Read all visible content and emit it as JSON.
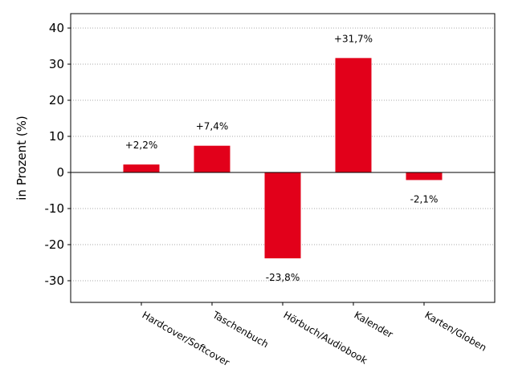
{
  "chart_data": {
    "type": "bar",
    "categories": [
      "Hardcover/Softcover",
      "Taschenbuch",
      "Hörbuch/Audiobook",
      "Kalender",
      "Karten/Globen"
    ],
    "values": [
      2.2,
      7.4,
      -23.8,
      31.7,
      -2.1
    ],
    "data_labels": [
      "+2,2%",
      "+7,4%",
      "-23,8%",
      "+31,7%",
      "-2,1%"
    ],
    "ylabel": "in Prozent (%)",
    "xlabel": "",
    "ylim": [
      -36,
      44
    ],
    "yticks": [
      -30,
      -20,
      -10,
      0,
      10,
      20,
      30,
      40
    ],
    "ytick_labels": [
      "-30",
      "-20",
      "-10",
      "0",
      "10",
      "20",
      "30",
      "40"
    ],
    "grid": "horizontal dotted",
    "bar_color": "#e2001a",
    "category_label_rotation": "diagonal"
  }
}
